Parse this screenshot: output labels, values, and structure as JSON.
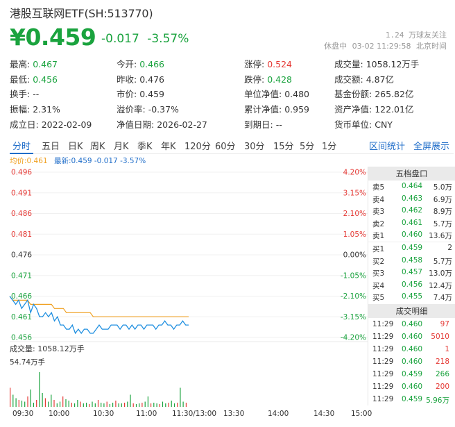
{
  "header": {
    "title": "港股互联网ETF(SH:513770)",
    "price": "¥0.459",
    "change": "-0.017",
    "change_pct": "-3.57%",
    "followers": "1.24 万球友关注",
    "status": "休盘中",
    "datetime": "03-02 11:29:58",
    "timezone": "北京时间"
  },
  "stats": [
    {
      "label": "最高:",
      "value": "0.467",
      "color": "green"
    },
    {
      "label": "今开:",
      "value": "0.466",
      "color": "green"
    },
    {
      "label": "涨停:",
      "value": "0.524",
      "color": "red"
    },
    {
      "label": "成交量:",
      "value": "1058.12万手",
      "color": "plain"
    },
    {
      "label": "最低:",
      "value": "0.456",
      "color": "green"
    },
    {
      "label": "昨收:",
      "value": "0.476",
      "color": "plain"
    },
    {
      "label": "跌停:",
      "value": "0.428",
      "color": "green"
    },
    {
      "label": "成交额:",
      "value": "4.87亿",
      "color": "plain"
    },
    {
      "label": "换手:",
      "value": "--",
      "color": "plain"
    },
    {
      "label": "市价:",
      "value": "0.459",
      "color": "plain"
    },
    {
      "label": "单位净值:",
      "value": "0.480",
      "color": "plain"
    },
    {
      "label": "基金份额:",
      "value": "265.82亿",
      "color": "plain"
    },
    {
      "label": "振幅:",
      "value": "2.31%",
      "color": "plain"
    },
    {
      "label": "溢价率:",
      "value": "-0.37%",
      "color": "plain"
    },
    {
      "label": "累计净值:",
      "value": "0.959",
      "color": "plain"
    },
    {
      "label": "资产净值:",
      "value": "122.01亿",
      "color": "plain"
    },
    {
      "label": "成立日:",
      "value": "2022-02-09",
      "color": "plain"
    },
    {
      "label": "净值日期:",
      "value": "2026-02-27",
      "color": "plain"
    },
    {
      "label": "到期日:",
      "value": "--",
      "color": "plain"
    },
    {
      "label": "货币单位:",
      "value": "CNY",
      "color": "plain"
    }
  ],
  "tabs": [
    "分时",
    "五日",
    "日K",
    "周K",
    "月K",
    "季K",
    "年K",
    "120分",
    "60分",
    "30分",
    "15分",
    "5分",
    "1分"
  ],
  "tab_right": [
    "区间统计",
    "全屏展示"
  ],
  "legend": {
    "avg": "均价:0.461",
    "latest": "最新:0.459 -0.017 -3.57%"
  },
  "chart_data": {
    "type": "line",
    "y_left_ticks": [
      "0.496",
      "0.491",
      "0.486",
      "0.481",
      "0.476",
      "0.471",
      "0.466",
      "0.461",
      "0.456"
    ],
    "y_right_ticks": [
      "4.20%",
      "3.15%",
      "2.10%",
      "1.05%",
      "0.00%",
      "-1.05%",
      "-2.10%",
      "-3.15%",
      "-4.20%"
    ],
    "ylim": [
      0.456,
      0.496
    ],
    "prev_close": 0.476,
    "x_ticks": [
      "09:30",
      "10:00",
      "10:30",
      "11:00",
      "11:30/13:00",
      "13:30",
      "14:00",
      "14:30",
      "15:00"
    ],
    "price_series": [
      0.466,
      0.465,
      0.464,
      0.465,
      0.463,
      0.464,
      0.465,
      0.462,
      0.464,
      0.463,
      0.461,
      0.461,
      0.462,
      0.461,
      0.462,
      0.46,
      0.461,
      0.459,
      0.459,
      0.458,
      0.458,
      0.459,
      0.457,
      0.458,
      0.457,
      0.458,
      0.458,
      0.457,
      0.457,
      0.458,
      0.459,
      0.458,
      0.458,
      0.458,
      0.459,
      0.459,
      0.459,
      0.458,
      0.459,
      0.459,
      0.458,
      0.459,
      0.458,
      0.459,
      0.459,
      0.458,
      0.459,
      0.459,
      0.459,
      0.458,
      0.459,
      0.459,
      0.46,
      0.459,
      0.459,
      0.458,
      0.459,
      0.459,
      0.46,
      0.459,
      0.459
    ],
    "avg_series": [
      0.466,
      0.465,
      0.465,
      0.465,
      0.465,
      0.465,
      0.465,
      0.464,
      0.464,
      0.464,
      0.464,
      0.464,
      0.464,
      0.464,
      0.464,
      0.463,
      0.463,
      0.463,
      0.463,
      0.462,
      0.462,
      0.462,
      0.462,
      0.462,
      0.462,
      0.462,
      0.462,
      0.462,
      0.461,
      0.461,
      0.461,
      0.461,
      0.461,
      0.461,
      0.461,
      0.461,
      0.461,
      0.461,
      0.461,
      0.461,
      0.461,
      0.461,
      0.461,
      0.461,
      0.461,
      0.461,
      0.461,
      0.461,
      0.461,
      0.461,
      0.461,
      0.461,
      0.461,
      0.461,
      0.461,
      0.461,
      0.461,
      0.461,
      0.461,
      0.461,
      0.461
    ],
    "volume_series": [
      0.55,
      0.35,
      0.25,
      0.2,
      0.18,
      0.15,
      0.3,
      0.5,
      0.12,
      0.2,
      1.0,
      0.4,
      0.25,
      0.15,
      0.35,
      0.2,
      0.1,
      0.15,
      0.3,
      0.22,
      0.18,
      0.12,
      0.1,
      0.2,
      0.15,
      0.1,
      0.12,
      0.08,
      0.15,
      0.1,
      0.2,
      0.12,
      0.1,
      0.15,
      0.08,
      0.12,
      0.18,
      0.1,
      0.1,
      0.12,
      0.15,
      0.35,
      0.1,
      0.08,
      0.1,
      0.12,
      0.15,
      0.3,
      0.1,
      0.12,
      0.1,
      0.08,
      0.15,
      0.1,
      0.12,
      0.18,
      0.1,
      0.12,
      0.55,
      0.15,
      0.12
    ],
    "volume_total": "成交量: 1058.12万手",
    "volume_max": "54.74万手"
  },
  "orderbook": {
    "title": "五档盘口",
    "asks": [
      {
        "label": "卖5",
        "price": "0.464",
        "vol": "5.0万"
      },
      {
        "label": "卖4",
        "price": "0.463",
        "vol": "6.9万"
      },
      {
        "label": "卖3",
        "price": "0.462",
        "vol": "8.9万"
      },
      {
        "label": "卖2",
        "price": "0.461",
        "vol": "5.7万"
      },
      {
        "label": "卖1",
        "price": "0.460",
        "vol": "13.6万"
      }
    ],
    "bids": [
      {
        "label": "买1",
        "price": "0.459",
        "vol": "2"
      },
      {
        "label": "买2",
        "price": "0.458",
        "vol": "5.7万"
      },
      {
        "label": "买3",
        "price": "0.457",
        "vol": "13.0万"
      },
      {
        "label": "买4",
        "price": "0.456",
        "vol": "12.4万"
      },
      {
        "label": "买5",
        "price": "0.455",
        "vol": "7.4万"
      }
    ]
  },
  "trades": {
    "title": "成交明细",
    "rows": [
      {
        "time": "11:29",
        "price": "0.460",
        "vol": "97",
        "color": "red"
      },
      {
        "time": "11:29",
        "price": "0.460",
        "vol": "5010",
        "color": "red"
      },
      {
        "time": "11:29",
        "price": "0.460",
        "vol": "1",
        "color": "red"
      },
      {
        "time": "11:29",
        "price": "0.460",
        "vol": "218",
        "color": "red"
      },
      {
        "time": "11:29",
        "price": "0.459",
        "vol": "266",
        "color": "green"
      },
      {
        "time": "11:29",
        "price": "0.460",
        "vol": "200",
        "color": "red"
      },
      {
        "time": "11:29",
        "price": "0.459",
        "vol": "5.96万",
        "color": "green"
      }
    ]
  },
  "colors": {
    "up": "#e53935",
    "down": "#1aa33e",
    "accent": "#1f6dc9",
    "avg": "#f0a020"
  }
}
